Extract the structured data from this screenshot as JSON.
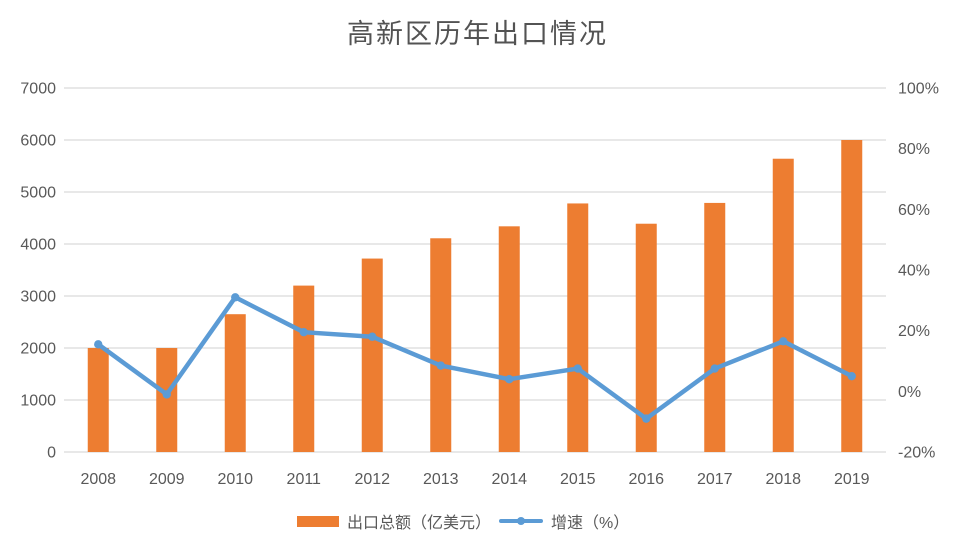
{
  "title": "高新区历年出口情况",
  "chart_data": {
    "type": "bar",
    "subtype": "combo-bar-line",
    "title": "高新区历年出口情况",
    "categories": [
      "2008",
      "2009",
      "2010",
      "2011",
      "2012",
      "2013",
      "2014",
      "2015",
      "2016",
      "2017",
      "2018",
      "2019"
    ],
    "series": [
      {
        "name": "出口总额（亿美元）",
        "type": "bar",
        "axis": "left",
        "color": "#ED7D31",
        "values": [
          2000,
          2000,
          2650,
          3200,
          3720,
          4110,
          4340,
          4780,
          4390,
          4790,
          5640,
          6000
        ]
      },
      {
        "name": "增速（%）",
        "type": "line",
        "axis": "right",
        "color": "#5B9BD5",
        "values": [
          15.5,
          -1,
          31,
          19.5,
          18,
          8.5,
          4,
          7.5,
          -9,
          7.5,
          16.5,
          5
        ]
      }
    ],
    "left_axis": {
      "min": 0,
      "max": 7000,
      "step": 1000,
      "tick_labels": [
        "0",
        "1000",
        "2000",
        "3000",
        "4000",
        "5000",
        "6000",
        "7000"
      ]
    },
    "right_axis": {
      "min": -20,
      "max": 100,
      "step": 20,
      "tick_labels": [
        "-20%",
        "0%",
        "20%",
        "40%",
        "60%",
        "80%",
        "100%"
      ]
    },
    "grid": true,
    "legend_position": "bottom",
    "colors": {
      "bar": "#ED7D31",
      "line": "#5B9BD5",
      "gridline": "#D9D9D9",
      "axis_text": "#595959",
      "title_text": "#535353",
      "background": "#FFFFFF"
    }
  }
}
